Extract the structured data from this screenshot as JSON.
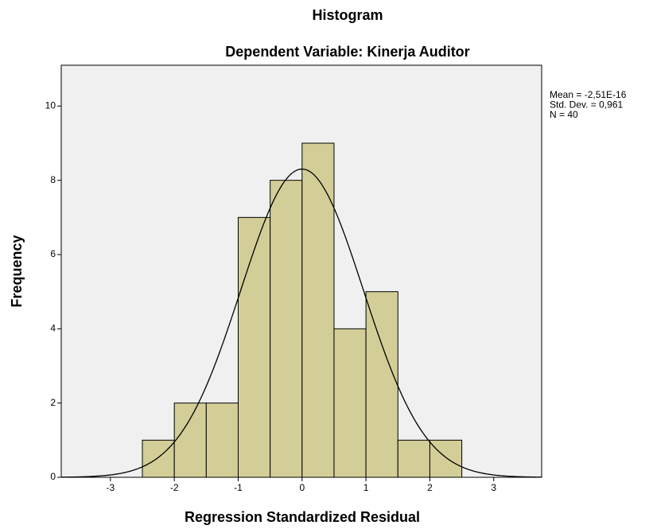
{
  "chart_data": {
    "type": "histogram",
    "title": "Histogram",
    "subtitle": "Dependent Variable: Kinerja Auditor",
    "x_label": "Regression Standardized Residual",
    "y_label": "Frequency",
    "bins": [
      -2.5,
      -2,
      -1.5,
      -1,
      -0.5,
      0,
      0.5,
      1,
      1.5,
      2,
      2.5
    ],
    "values": [
      1,
      2,
      2,
      7,
      8,
      9,
      4,
      5,
      1,
      1
    ],
    "color": "#d3ce97",
    "xlim": [
      -3.77,
      3.75
    ],
    "xticks": [
      -3,
      -2,
      -1,
      0,
      1,
      2,
      3
    ],
    "ylim": [
      0,
      11.1
    ],
    "yticks": [
      0,
      2,
      4,
      6,
      8,
      10
    ],
    "stats": [
      {
        "value": -2.51e-16,
        "label": "Mean = -2,51E-16"
      },
      {
        "value": 0.961,
        "label": "Std. Dev. = 0,961"
      },
      {
        "value": 40,
        "label": "N = 40"
      }
    ],
    "normal_curve": true
  }
}
